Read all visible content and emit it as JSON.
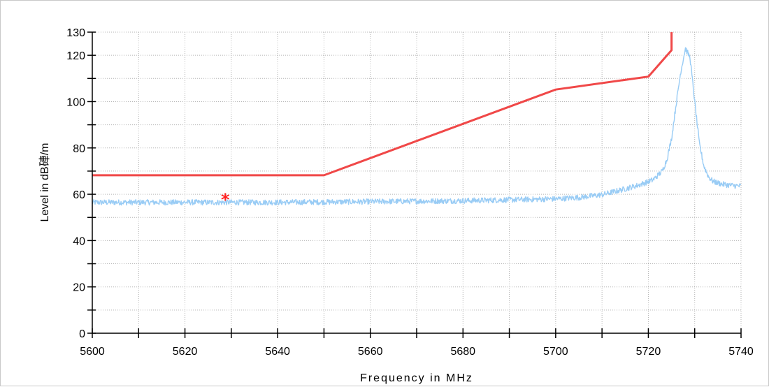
{
  "chart_data": {
    "type": "line",
    "xlabel": "Frequency in MHz",
    "ylabel": "Level in dB硨/m",
    "xlim": [
      5600,
      5740
    ],
    "ylim": [
      0,
      130
    ],
    "x_ticks": [
      5600,
      5620,
      5640,
      5660,
      5680,
      5700,
      5720,
      5740
    ],
    "y_ticks": [
      0,
      20,
      40,
      60,
      80,
      100,
      120,
      130
    ],
    "grid": true,
    "series": [
      {
        "color": "#f04848",
        "x": [
          5600,
          5650,
          5700,
          5720,
          5725,
          5725
        ],
        "y": [
          68.2,
          68.2,
          105.2,
          110.8,
          122.2,
          130
        ]
      },
      {
        "color": "#99ccf5",
        "x": [
          5600,
          5640,
          5660,
          5680,
          5700,
          5705,
          5710,
          5714,
          5718,
          5721,
          5723,
          5724,
          5725,
          5726,
          5727,
          5728,
          5729,
          5730,
          5731,
          5732,
          5733,
          5734,
          5736,
          5738,
          5740
        ],
        "y": [
          56.5,
          56.5,
          56.8,
          57.2,
          58.0,
          58.6,
          59.8,
          61.8,
          64.0,
          66.2,
          70.0,
          75.0,
          84.0,
          99.0,
          113.0,
          123.0,
          119.0,
          100.0,
          82.0,
          72.0,
          67.5,
          65.5,
          64.3,
          63.8,
          63.5
        ]
      }
    ],
    "markers": [
      {
        "x": 5628.7,
        "y": 58.8,
        "symbol": "*",
        "color": "#ff2020"
      }
    ]
  }
}
